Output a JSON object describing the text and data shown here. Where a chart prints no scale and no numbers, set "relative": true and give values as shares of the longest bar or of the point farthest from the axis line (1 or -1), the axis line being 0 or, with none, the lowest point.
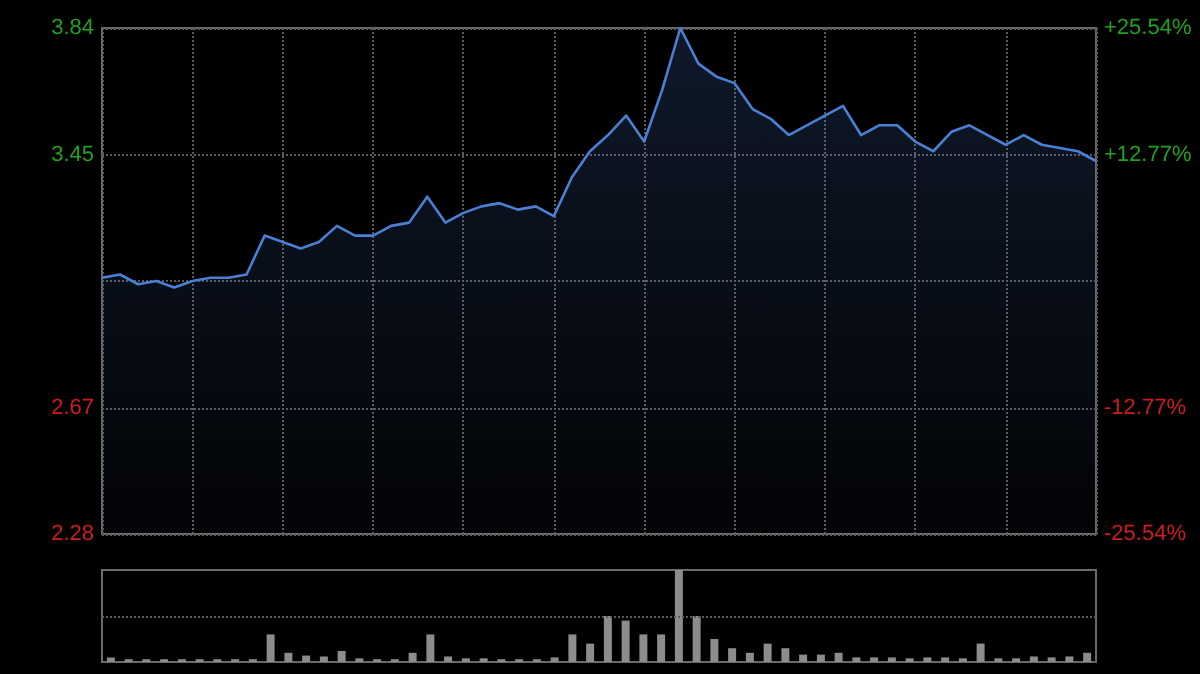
{
  "chart_data": [
    {
      "type": "area",
      "categories": [
        null,
        null,
        null,
        null,
        null,
        null,
        null,
        null,
        null,
        null,
        null,
        null,
        null,
        null,
        null,
        null,
        null,
        null,
        null,
        null,
        null,
        null,
        null,
        null,
        null,
        null,
        null,
        null,
        null,
        null,
        null,
        null,
        null,
        null,
        null,
        null,
        null,
        null,
        null,
        null,
        null,
        null,
        null,
        null,
        null,
        null,
        null,
        null,
        null,
        null,
        null,
        null,
        null,
        null,
        null,
        null
      ],
      "series": [
        {
          "color": "#4a7fd4",
          "values": [
            3.07,
            3.08,
            3.05,
            3.06,
            3.04,
            3.06,
            3.07,
            3.07,
            3.08,
            3.2,
            3.18,
            3.16,
            3.18,
            3.23,
            3.2,
            3.2,
            3.23,
            3.24,
            3.32,
            3.24,
            3.27,
            3.29,
            3.3,
            3.28,
            3.29,
            3.26,
            3.38,
            3.46,
            3.51,
            3.57,
            3.49,
            3.65,
            3.84,
            3.73,
            3.69,
            3.67,
            3.59,
            3.56,
            3.51,
            3.54,
            3.57,
            3.6,
            3.51,
            3.54,
            3.54,
            3.49,
            3.46,
            3.52,
            3.54,
            3.51,
            3.48,
            3.51,
            3.48,
            3.47,
            3.46,
            3.43
          ]
        }
      ],
      "ylim": [
        2.28,
        3.84
      ],
      "yticks": [
        2.28,
        2.67,
        {
          "value": 3.06,
          "label": null
        },
        3.45,
        3.84
      ],
      "y2lim": [
        -25.54,
        25.54
      ],
      "y2ticks": [
        {
          "value": -25.54,
          "label": "-25.54%"
        },
        {
          "value": -12.77,
          "label": "-12.77%"
        },
        {
          "value": 0,
          "label": null
        },
        {
          "value": 12.77,
          "label": "+12.77%"
        },
        {
          "value": 25.54,
          "label": "+25.54%"
        }
      ],
      "grid": true,
      "tick_labels": "y"
    },
    {
      "type": "bar",
      "relative": true,
      "color": "#8c8c8c",
      "tick_labels": false,
      "ref_lines": [
        {
          "axis": "y",
          "value": 0.5,
          "color": "#5a5a5a",
          "line_style": "dotted"
        }
      ],
      "categories": [
        null,
        null,
        null,
        null,
        null,
        null,
        null,
        null,
        null,
        null,
        null,
        null,
        null,
        null,
        null,
        null,
        null,
        null,
        null,
        null,
        null,
        null,
        null,
        null,
        null,
        null,
        null,
        null,
        null,
        null,
        null,
        null,
        null,
        null,
        null,
        null,
        null,
        null,
        null,
        null,
        null,
        null,
        null,
        null,
        null,
        null,
        null,
        null,
        null,
        null,
        null,
        null,
        null,
        null,
        null,
        null
      ],
      "values": [
        0.05,
        0.03,
        0.03,
        0.03,
        0.03,
        0.03,
        0.03,
        0.03,
        0.03,
        0.3,
        0.1,
        0.07,
        0.06,
        0.12,
        0.04,
        0.03,
        0.03,
        0.1,
        0.3,
        0.06,
        0.04,
        0.04,
        0.03,
        0.03,
        0.03,
        0.05,
        0.3,
        0.2,
        0.5,
        0.45,
        0.3,
        0.3,
        1,
        0.5,
        0.25,
        0.15,
        0.1,
        0.2,
        0.15,
        0.08,
        0.08,
        0.1,
        0.05,
        0.05,
        0.05,
        0.04,
        0.05,
        0.05,
        0.04,
        0.2,
        0.04,
        0.04,
        0.06,
        0.05,
        0.06,
        0.1
      ]
    }
  ]
}
